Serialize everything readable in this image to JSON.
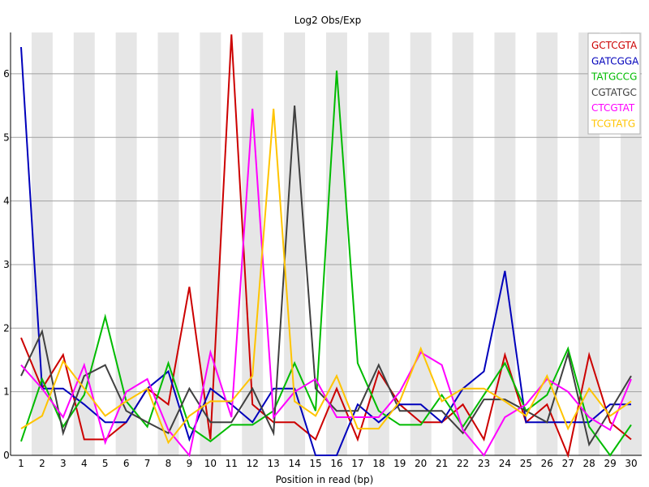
{
  "chart_data": {
    "type": "line",
    "title": "Log2 Obs/Exp",
    "xlabel": "Position in read (bp)",
    "ylabel": "",
    "x": [
      1,
      2,
      3,
      4,
      5,
      6,
      7,
      8,
      9,
      10,
      11,
      12,
      13,
      14,
      15,
      16,
      17,
      18,
      19,
      20,
      21,
      22,
      23,
      24,
      25,
      26,
      27,
      28,
      29,
      30
    ],
    "xtick_labels": [
      "1",
      "2",
      "3",
      "4",
      "5",
      "6",
      "7",
      "8",
      "9",
      "10",
      "11",
      "12",
      "13",
      "14",
      "15",
      "16",
      "17",
      "18",
      "19",
      "20",
      "21",
      "22",
      "23",
      "24",
      "25",
      "26",
      "27",
      "28",
      "29",
      "30"
    ],
    "ylim": [
      0,
      6.65
    ],
    "yticks": [
      0,
      1,
      2,
      3,
      4,
      5,
      6
    ],
    "ytick_labels": [
      "0",
      "1",
      "2",
      "3",
      "4",
      "5",
      "6"
    ],
    "grid": true,
    "legend_position": "top-right",
    "series": [
      {
        "name": "GCTCGTA",
        "color": "#cc0000",
        "values": [
          1.85,
          1.05,
          1.58,
          0.25,
          0.25,
          0.52,
          1.05,
          0.8,
          2.65,
          0.25,
          6.62,
          0.8,
          0.52,
          0.52,
          0.25,
          1.05,
          0.25,
          1.32,
          0.8,
          0.52,
          0.52,
          0.8,
          0.25,
          1.58,
          0.52,
          0.8,
          0.0,
          1.58,
          0.52,
          0.25
        ]
      },
      {
        "name": "GATCGGA",
        "color": "#0000bb",
        "values": [
          6.42,
          1.05,
          1.05,
          0.8,
          0.52,
          0.52,
          1.05,
          1.32,
          0.25,
          1.05,
          0.8,
          0.52,
          1.05,
          1.05,
          0.0,
          0.0,
          0.8,
          0.52,
          0.8,
          0.8,
          0.52,
          1.05,
          1.32,
          2.9,
          0.52,
          0.52,
          0.52,
          0.52,
          0.8,
          0.8
        ]
      },
      {
        "name": "TATGCCG",
        "color": "#00bb00",
        "values": [
          0.22,
          1.2,
          0.45,
          0.95,
          2.18,
          0.85,
          0.45,
          1.45,
          0.45,
          0.22,
          0.48,
          0.48,
          0.7,
          1.45,
          0.7,
          6.05,
          1.45,
          0.7,
          0.48,
          0.48,
          0.95,
          0.45,
          0.95,
          1.45,
          0.7,
          0.95,
          1.68,
          0.45,
          0.0,
          0.48
        ]
      },
      {
        "name": "CGTATGC",
        "color": "#404040",
        "values": [
          1.25,
          1.95,
          0.35,
          1.25,
          1.42,
          0.7,
          0.52,
          0.35,
          1.05,
          0.52,
          0.52,
          1.05,
          0.35,
          5.5,
          1.05,
          0.7,
          0.7,
          1.42,
          0.7,
          0.7,
          0.7,
          0.35,
          0.88,
          0.88,
          0.7,
          0.52,
          1.6,
          0.17,
          0.7,
          1.25
        ]
      },
      {
        "name": "CTCGTAT",
        "color": "#ff00ff",
        "values": [
          1.42,
          1.05,
          0.6,
          1.42,
          0.2,
          1.0,
          1.2,
          0.4,
          0.0,
          1.62,
          0.6,
          5.45,
          0.6,
          1.0,
          1.2,
          0.6,
          0.6,
          0.6,
          1.0,
          1.62,
          1.42,
          0.4,
          0.0,
          0.6,
          0.8,
          1.2,
          1.0,
          0.6,
          0.4,
          1.2
        ]
      },
      {
        "name": "TCGTATG",
        "color": "#ffc400",
        "values": [
          0.42,
          0.62,
          1.48,
          1.05,
          0.62,
          0.85,
          1.05,
          0.2,
          0.62,
          0.85,
          0.85,
          1.25,
          5.45,
          0.85,
          0.62,
          1.25,
          0.42,
          0.42,
          0.85,
          1.68,
          0.85,
          1.05,
          1.05,
          0.85,
          0.62,
          1.25,
          0.42,
          1.05,
          0.62,
          0.85
        ]
      }
    ]
  }
}
